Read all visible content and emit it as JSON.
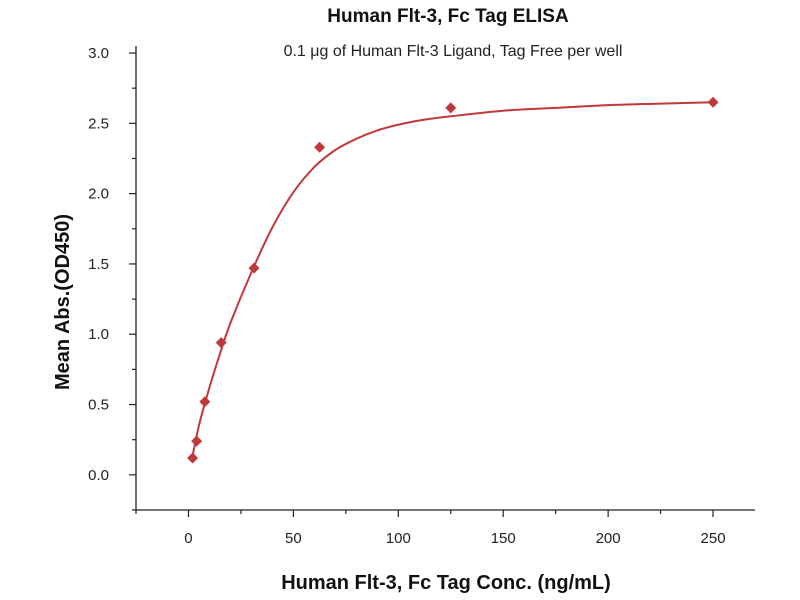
{
  "chart_data": {
    "type": "scatter",
    "title": "Human Flt-3, Fc Tag ELISA",
    "subtitle": "0.1 μg of Human Flt-3 Ligand, Tag Free per well",
    "xlabel": "Human Flt-3, Fc Tag Conc. (ng/mL)",
    "ylabel": "Mean Abs.(OD450)",
    "xlim": [
      -25,
      270
    ],
    "ylim": [
      -0.25,
      3.05
    ],
    "x_ticks": [
      0,
      50,
      100,
      150,
      200,
      250
    ],
    "y_ticks": [
      0.0,
      0.5,
      1.0,
      1.5,
      2.0,
      2.5,
      3.0
    ],
    "x_tick_labels": [
      "0",
      "50",
      "100",
      "150",
      "200",
      "250"
    ],
    "y_tick_labels": [
      "0.0",
      "0.5",
      "1.0",
      "1.5",
      "2.0",
      "2.5",
      "3.0"
    ],
    "grid": false,
    "legend": false,
    "series": [
      {
        "x": [
          1.95,
          3.9,
          7.8,
          15.6,
          31.25,
          62.5,
          125,
          250
        ],
        "y": [
          0.12,
          0.24,
          0.52,
          0.94,
          1.47,
          2.33,
          2.61,
          2.65
        ],
        "marker": "diamond",
        "color": "#c0393a"
      }
    ],
    "fit_curve": {
      "x": [
        1.5,
        5,
        10,
        15,
        20,
        30,
        40,
        50,
        60,
        70,
        80,
        90,
        100,
        110,
        125,
        150,
        175,
        200,
        225,
        250
      ],
      "y": [
        0.1,
        0.35,
        0.62,
        0.86,
        1.08,
        1.44,
        1.76,
        2.01,
        2.19,
        2.31,
        2.39,
        2.45,
        2.49,
        2.52,
        2.55,
        2.59,
        2.61,
        2.63,
        2.64,
        2.65
      ],
      "color": "#c0393a"
    }
  }
}
